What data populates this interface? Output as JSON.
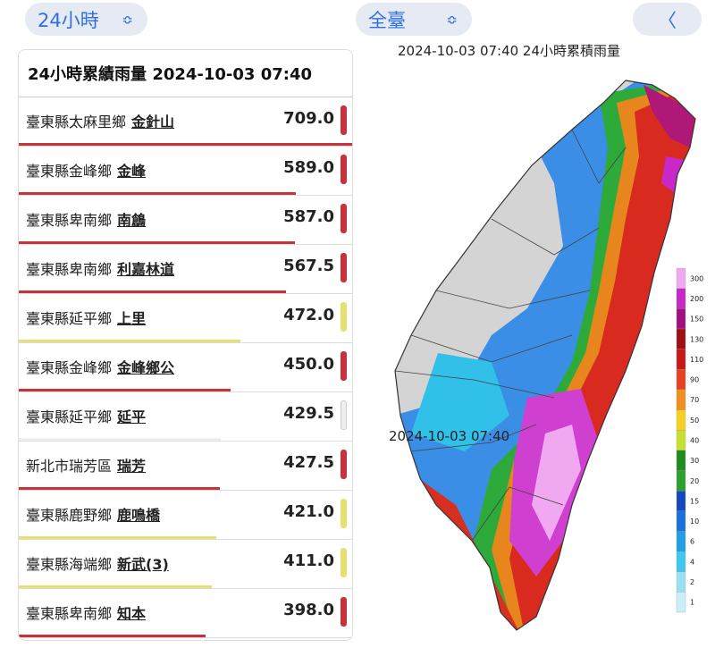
{
  "controls": {
    "period": "24小時",
    "region": "全臺",
    "back": "〈",
    "arrow": "≎"
  },
  "table": {
    "title": "24小時累績雨量 2024-10-03 07:40",
    "rows": [
      {
        "location": "臺東縣太麻里鄉",
        "station": "金針山",
        "value": "709.0",
        "color": "#c8323a"
      },
      {
        "location": "臺東縣金峰鄉",
        "station": "金峰",
        "value": "589.0",
        "color": "#c8323a"
      },
      {
        "location": "臺東縣卑南鄉",
        "station": "南鶬",
        "value": "587.0",
        "color": "#c8323a"
      },
      {
        "location": "臺東縣卑南鄉",
        "station": "利嘉林道",
        "value": "567.5",
        "color": "#c8323a"
      },
      {
        "location": "臺東縣延平鄉",
        "station": "上里",
        "value": "472.0",
        "color": "#e6e070"
      },
      {
        "location": "臺東縣金峰鄉",
        "station": "金峰鄉公",
        "value": "450.0",
        "color": "#c8323a"
      },
      {
        "location": "臺東縣延平鄉",
        "station": "延平",
        "value": "429.5",
        "color": "#eeeeee"
      },
      {
        "location": "新北市瑞芳區",
        "station": "瑞芳",
        "value": "427.5",
        "color": "#c8323a"
      },
      {
        "location": "臺東縣鹿野鄉",
        "station": "鹿鳴橋",
        "value": "421.0",
        "color": "#e6e070"
      },
      {
        "location": "臺東縣海端鄉",
        "station": "新武(3)",
        "value": "411.0",
        "color": "#e6e070"
      },
      {
        "location": "臺東縣卑南鄉",
        "station": "知本",
        "value": "398.0",
        "color": "#c8323a"
      }
    ]
  },
  "map": {
    "title": "2024-10-03 07:40   24小時累積雨量",
    "timestamp": "2024-10-03 07:40",
    "legend": {
      "labels": [
        "1",
        "2",
        "4",
        "6",
        "10",
        "15",
        "20",
        "30",
        "40",
        "50",
        "70",
        "90",
        "110",
        "130",
        "150",
        "200",
        "300"
      ],
      "colors": [
        "#c8f0f8",
        "#9be0f0",
        "#3ec8f0",
        "#1ea0e8",
        "#1a70e0",
        "#1448c0",
        "#2ca02c",
        "#1e8c1e",
        "#c8e030",
        "#f6d020",
        "#f09020",
        "#e84020",
        "#c81818",
        "#a01010",
        "#a01080",
        "#c828c8",
        "#f0a8f0"
      ]
    }
  }
}
